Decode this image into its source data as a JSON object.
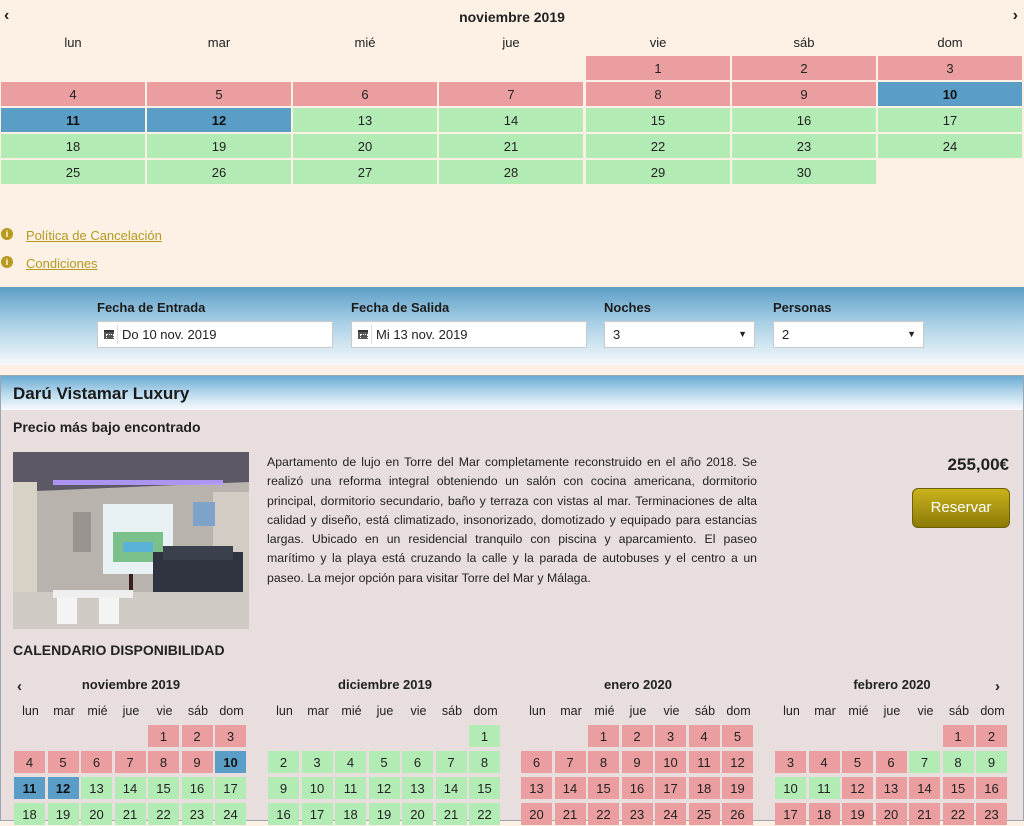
{
  "top_calendar": {
    "month": "noviembre 2019",
    "prev_icon": "chevron-left-icon",
    "next_icon": "chevron-right-icon",
    "prev_glyph": "‹",
    "next_glyph": "›",
    "weekdays": [
      "lun",
      "mar",
      "mié",
      "jue",
      "vie",
      "sáb",
      "dom"
    ],
    "weeks": [
      [
        null,
        null,
        null,
        null,
        {
          "d": "1",
          "s": "red"
        },
        {
          "d": "2",
          "s": "red"
        },
        {
          "d": "3",
          "s": "red"
        }
      ],
      [
        {
          "d": "4",
          "s": "red"
        },
        {
          "d": "5",
          "s": "red"
        },
        {
          "d": "6",
          "s": "red"
        },
        {
          "d": "7",
          "s": "red"
        },
        {
          "d": "8",
          "s": "red"
        },
        {
          "d": "9",
          "s": "red"
        },
        {
          "d": "10",
          "s": "blue"
        }
      ],
      [
        {
          "d": "11",
          "s": "blue"
        },
        {
          "d": "12",
          "s": "blue"
        },
        {
          "d": "13",
          "s": "green"
        },
        {
          "d": "14",
          "s": "green"
        },
        {
          "d": "15",
          "s": "green"
        },
        {
          "d": "16",
          "s": "green"
        },
        {
          "d": "17",
          "s": "green"
        }
      ],
      [
        {
          "d": "18",
          "s": "green"
        },
        {
          "d": "19",
          "s": "green"
        },
        {
          "d": "20",
          "s": "green"
        },
        {
          "d": "21",
          "s": "green"
        },
        {
          "d": "22",
          "s": "green"
        },
        {
          "d": "23",
          "s": "green"
        },
        {
          "d": "24",
          "s": "green"
        }
      ],
      [
        {
          "d": "25",
          "s": "green"
        },
        {
          "d": "26",
          "s": "green"
        },
        {
          "d": "27",
          "s": "green"
        },
        {
          "d": "28",
          "s": "green"
        },
        {
          "d": "29",
          "s": "green"
        },
        {
          "d": "30",
          "s": "green"
        },
        null
      ]
    ]
  },
  "colors": {
    "booked": "#eb9ea0",
    "available": "#b3ebb5",
    "selected": "#5a9ec8",
    "link": "#b49a20"
  },
  "links": {
    "icon": "info-icon",
    "cancellation": "Política de Cancelación",
    "conditions": "Condiciones"
  },
  "search": {
    "checkin_label": "Fecha de Entrada",
    "checkin_value": "Do 10 nov. 2019",
    "checkout_label": "Fecha de Salida",
    "checkout_value": "Mi 13 nov. 2019",
    "nights_label": "Noches",
    "nights_value": "3",
    "guests_label": "Personas",
    "guests_value": "2",
    "calendar_icon": "calendar-icon",
    "dropdown_icon": "caret-down-icon"
  },
  "property": {
    "name": "Darú Vistamar Luxury",
    "subtitle": "Precio más bajo encontrado",
    "description": "Apartamento de lujo en Torre del Mar completamente reconstruido en el año 2018. Se realizó una reforma integral obteniendo un salón con cocina americana, dormitorio principal, dormitorio secundario, baño  y terraza con vistas al mar. Terminaciones de alta calidad y diseño, está climatizado, insonorizado, domotizado y equipado para estancias largas. Ubicado en un residencial tranquilo con piscina y aparcamiento.  El paseo marítimo y la playa está cruzando la calle y la parada de autobuses y el centro a un paseo. La mejor opción para visitar Torre del Mar y Málaga.",
    "price": "255,00€",
    "reserve_label": "Reservar",
    "availability_title": "CALENDARIO DISPONIBILIDAD"
  },
  "mini_calendars": {
    "weekdays": [
      "lun",
      "mar",
      "mié",
      "jue",
      "vie",
      "sáb",
      "dom"
    ],
    "months": [
      {
        "title": "noviembre 2019",
        "weeks": [
          [
            null,
            null,
            null,
            null,
            {
              "d": "1",
              "s": "red"
            },
            {
              "d": "2",
              "s": "red"
            },
            {
              "d": "3",
              "s": "red"
            }
          ],
          [
            {
              "d": "4",
              "s": "red"
            },
            {
              "d": "5",
              "s": "red"
            },
            {
              "d": "6",
              "s": "red"
            },
            {
              "d": "7",
              "s": "red"
            },
            {
              "d": "8",
              "s": "red"
            },
            {
              "d": "9",
              "s": "red"
            },
            {
              "d": "10",
              "s": "blue"
            }
          ],
          [
            {
              "d": "11",
              "s": "blue"
            },
            {
              "d": "12",
              "s": "blue"
            },
            {
              "d": "13",
              "s": "green"
            },
            {
              "d": "14",
              "s": "green"
            },
            {
              "d": "15",
              "s": "green"
            },
            {
              "d": "16",
              "s": "green"
            },
            {
              "d": "17",
              "s": "green"
            }
          ],
          [
            {
              "d": "18",
              "s": "green"
            },
            {
              "d": "19",
              "s": "green"
            },
            {
              "d": "20",
              "s": "green"
            },
            {
              "d": "21",
              "s": "green"
            },
            {
              "d": "22",
              "s": "green"
            },
            {
              "d": "23",
              "s": "green"
            },
            {
              "d": "24",
              "s": "green"
            }
          ]
        ]
      },
      {
        "title": "diciembre 2019",
        "weeks": [
          [
            null,
            null,
            null,
            null,
            null,
            null,
            {
              "d": "1",
              "s": "green"
            }
          ],
          [
            {
              "d": "2",
              "s": "green"
            },
            {
              "d": "3",
              "s": "green"
            },
            {
              "d": "4",
              "s": "green"
            },
            {
              "d": "5",
              "s": "green"
            },
            {
              "d": "6",
              "s": "green"
            },
            {
              "d": "7",
              "s": "green"
            },
            {
              "d": "8",
              "s": "green"
            }
          ],
          [
            {
              "d": "9",
              "s": "green"
            },
            {
              "d": "10",
              "s": "green"
            },
            {
              "d": "11",
              "s": "green"
            },
            {
              "d": "12",
              "s": "green"
            },
            {
              "d": "13",
              "s": "green"
            },
            {
              "d": "14",
              "s": "green"
            },
            {
              "d": "15",
              "s": "green"
            }
          ],
          [
            {
              "d": "16",
              "s": "green"
            },
            {
              "d": "17",
              "s": "green"
            },
            {
              "d": "18",
              "s": "green"
            },
            {
              "d": "19",
              "s": "green"
            },
            {
              "d": "20",
              "s": "green"
            },
            {
              "d": "21",
              "s": "green"
            },
            {
              "d": "22",
              "s": "green"
            }
          ]
        ]
      },
      {
        "title": "enero 2020",
        "weeks": [
          [
            null,
            null,
            {
              "d": "1",
              "s": "red"
            },
            {
              "d": "2",
              "s": "red"
            },
            {
              "d": "3",
              "s": "red"
            },
            {
              "d": "4",
              "s": "red"
            },
            {
              "d": "5",
              "s": "red"
            }
          ],
          [
            {
              "d": "6",
              "s": "red"
            },
            {
              "d": "7",
              "s": "red"
            },
            {
              "d": "8",
              "s": "red"
            },
            {
              "d": "9",
              "s": "red"
            },
            {
              "d": "10",
              "s": "red"
            },
            {
              "d": "11",
              "s": "red"
            },
            {
              "d": "12",
              "s": "red"
            }
          ],
          [
            {
              "d": "13",
              "s": "red"
            },
            {
              "d": "14",
              "s": "red"
            },
            {
              "d": "15",
              "s": "red"
            },
            {
              "d": "16",
              "s": "red"
            },
            {
              "d": "17",
              "s": "red"
            },
            {
              "d": "18",
              "s": "red"
            },
            {
              "d": "19",
              "s": "red"
            }
          ],
          [
            {
              "d": "20",
              "s": "red"
            },
            {
              "d": "21",
              "s": "red"
            },
            {
              "d": "22",
              "s": "red"
            },
            {
              "d": "23",
              "s": "red"
            },
            {
              "d": "24",
              "s": "red"
            },
            {
              "d": "25",
              "s": "red"
            },
            {
              "d": "26",
              "s": "red"
            }
          ]
        ]
      },
      {
        "title": "febrero 2020",
        "weeks": [
          [
            null,
            null,
            null,
            null,
            null,
            {
              "d": "1",
              "s": "red"
            },
            {
              "d": "2",
              "s": "red"
            }
          ],
          [
            {
              "d": "3",
              "s": "red"
            },
            {
              "d": "4",
              "s": "red"
            },
            {
              "d": "5",
              "s": "red"
            },
            {
              "d": "6",
              "s": "red"
            },
            {
              "d": "7",
              "s": "green"
            },
            {
              "d": "8",
              "s": "green"
            },
            {
              "d": "9",
              "s": "green"
            }
          ],
          [
            {
              "d": "10",
              "s": "green"
            },
            {
              "d": "11",
              "s": "green"
            },
            {
              "d": "12",
              "s": "red"
            },
            {
              "d": "13",
              "s": "red"
            },
            {
              "d": "14",
              "s": "red"
            },
            {
              "d": "15",
              "s": "red"
            },
            {
              "d": "16",
              "s": "red"
            }
          ],
          [
            {
              "d": "17",
              "s": "red"
            },
            {
              "d": "18",
              "s": "red"
            },
            {
              "d": "19",
              "s": "red"
            },
            {
              "d": "20",
              "s": "red"
            },
            {
              "d": "21",
              "s": "red"
            },
            {
              "d": "22",
              "s": "red"
            },
            {
              "d": "23",
              "s": "red"
            }
          ]
        ]
      }
    ]
  }
}
